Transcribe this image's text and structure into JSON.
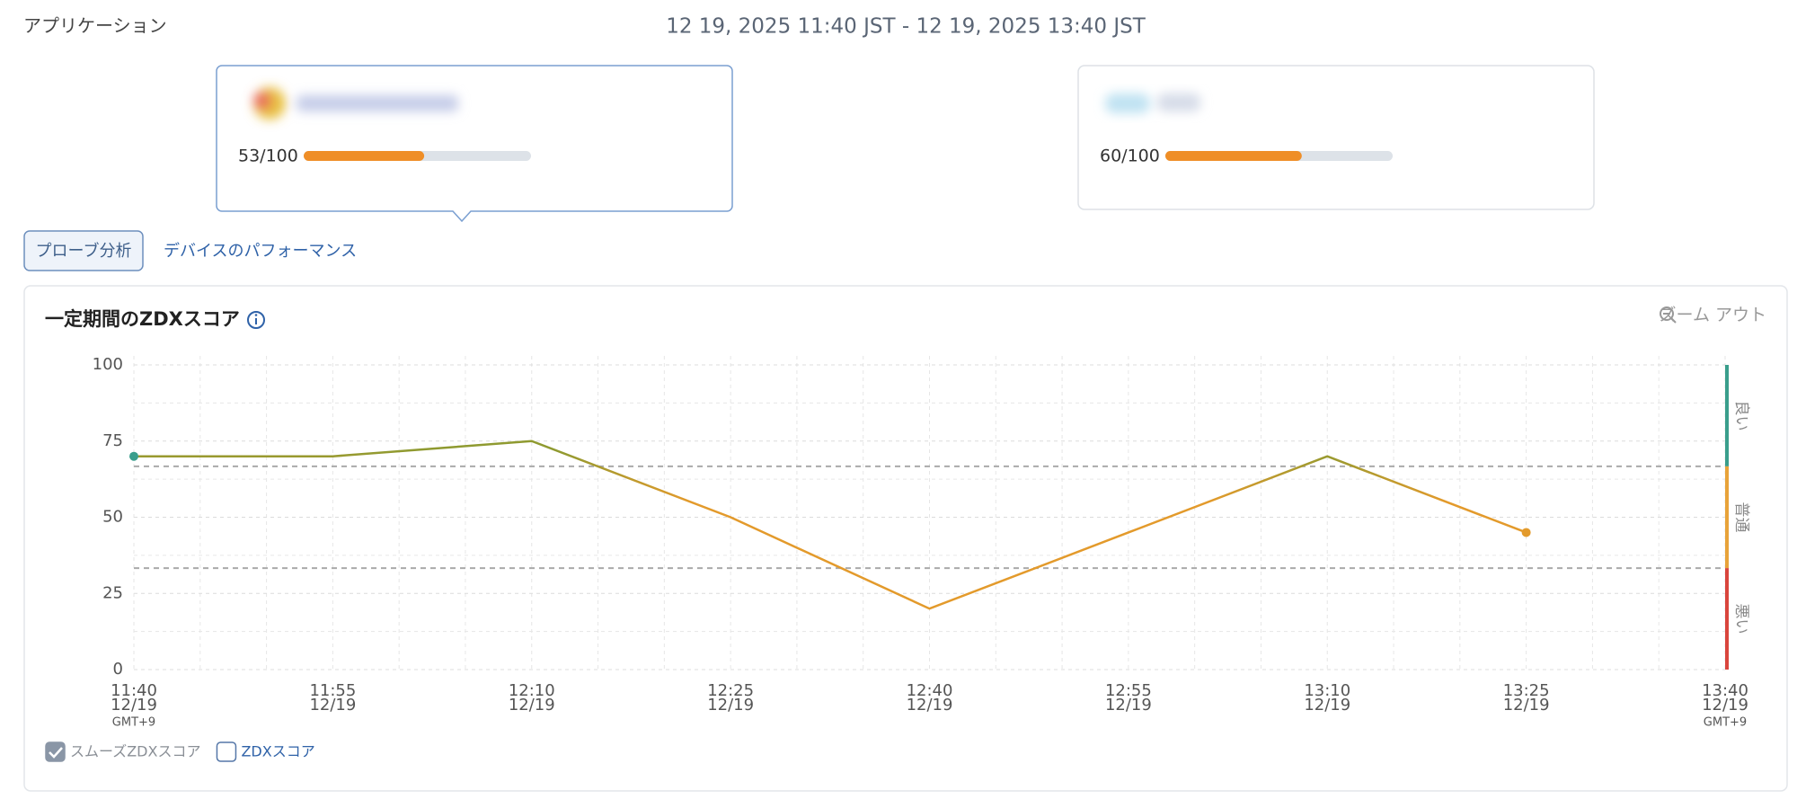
{
  "header": {
    "label": "アプリケーション",
    "time_range": "12 19, 2025 11:40 JST - 12 19, 2025 13:40 JST"
  },
  "apps": [
    {
      "score_label": "53/100",
      "score": 53,
      "max": 100
    },
    {
      "score_label": "60/100",
      "score": 60,
      "max": 100
    }
  ],
  "tabs": [
    "プローブ分析",
    "デバイスのパフォーマンス"
  ],
  "zoom_out": "ズーム アウト",
  "chart_data": {
    "type": "line",
    "title": "一定期間のZDXスコア",
    "x": [
      "11:40",
      "11:55",
      "12:10",
      "12:25",
      "12:40",
      "12:55",
      "13:10",
      "13:25",
      "13:40"
    ],
    "x_dates": [
      "12/19",
      "12/19",
      "12/19",
      "12/19",
      "12/19",
      "12/19",
      "12/19",
      "12/19",
      "12/19"
    ],
    "timezone": "GMT+9",
    "series": [
      {
        "name": "スムーズZDXスコア",
        "checked": true,
        "values": [
          70,
          70,
          75,
          50,
          20,
          45,
          70,
          45,
          null
        ],
        "gradient": [
          {
            "value": 72,
            "color": "#8f9a30"
          },
          {
            "value": 55,
            "color": "#e39a2b"
          }
        ]
      }
    ],
    "unchecked_series": [
      {
        "name": "ZDXスコア",
        "checked": false
      }
    ],
    "ylim": [
      0,
      100
    ],
    "yticks": [
      0,
      25,
      50,
      75,
      100
    ],
    "grid": true,
    "bands": [
      {
        "label": "良い",
        "from": 66.7,
        "to": 100,
        "color": "#3a9e8c"
      },
      {
        "label": "普通",
        "from": 33.3,
        "to": 66.7,
        "color": "#e8a33a"
      },
      {
        "label": "悪い",
        "from": 0,
        "to": 33.3,
        "color": "#d9453d"
      }
    ]
  }
}
